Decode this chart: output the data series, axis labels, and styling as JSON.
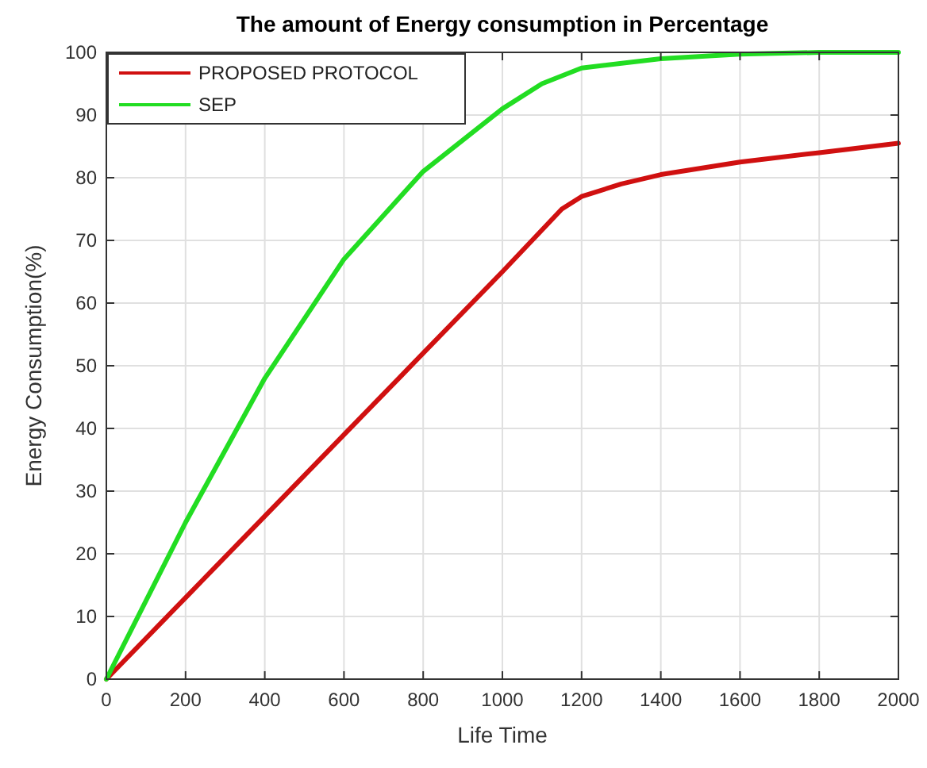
{
  "chart_data": {
    "type": "line",
    "title": "The amount of Energy consumption in Percentage",
    "xlabel": "Life Time",
    "ylabel": "Energy Consumption(%)",
    "xlim": [
      0,
      2000
    ],
    "xticks": [
      0,
      200,
      400,
      600,
      800,
      1000,
      1200,
      1400,
      1600,
      1800,
      2000
    ],
    "ylim": [
      0,
      100
    ],
    "yticks": [
      0,
      10,
      20,
      30,
      40,
      50,
      60,
      70,
      80,
      90,
      100
    ],
    "grid": true,
    "legend": "top left",
    "series": [
      {
        "name": "PROPOSED PROTOCOL",
        "color": "#d01010",
        "x": [
          0,
          200,
          400,
          600,
          800,
          1000,
          1150,
          1200,
          1300,
          1400,
          1600,
          1800,
          2000
        ],
        "values": [
          0,
          13,
          26,
          39,
          52,
          65,
          75,
          77,
          79,
          80.5,
          82.5,
          84,
          85.5
        ]
      },
      {
        "name": "SEP",
        "color": "#22dd22",
        "x": [
          0,
          200,
          400,
          600,
          800,
          1000,
          1100,
          1200,
          1400,
          1600,
          1800,
          2000
        ],
        "values": [
          0,
          25,
          48,
          67,
          81,
          91,
          95,
          97.5,
          99,
          99.7,
          100,
          100
        ]
      }
    ]
  }
}
